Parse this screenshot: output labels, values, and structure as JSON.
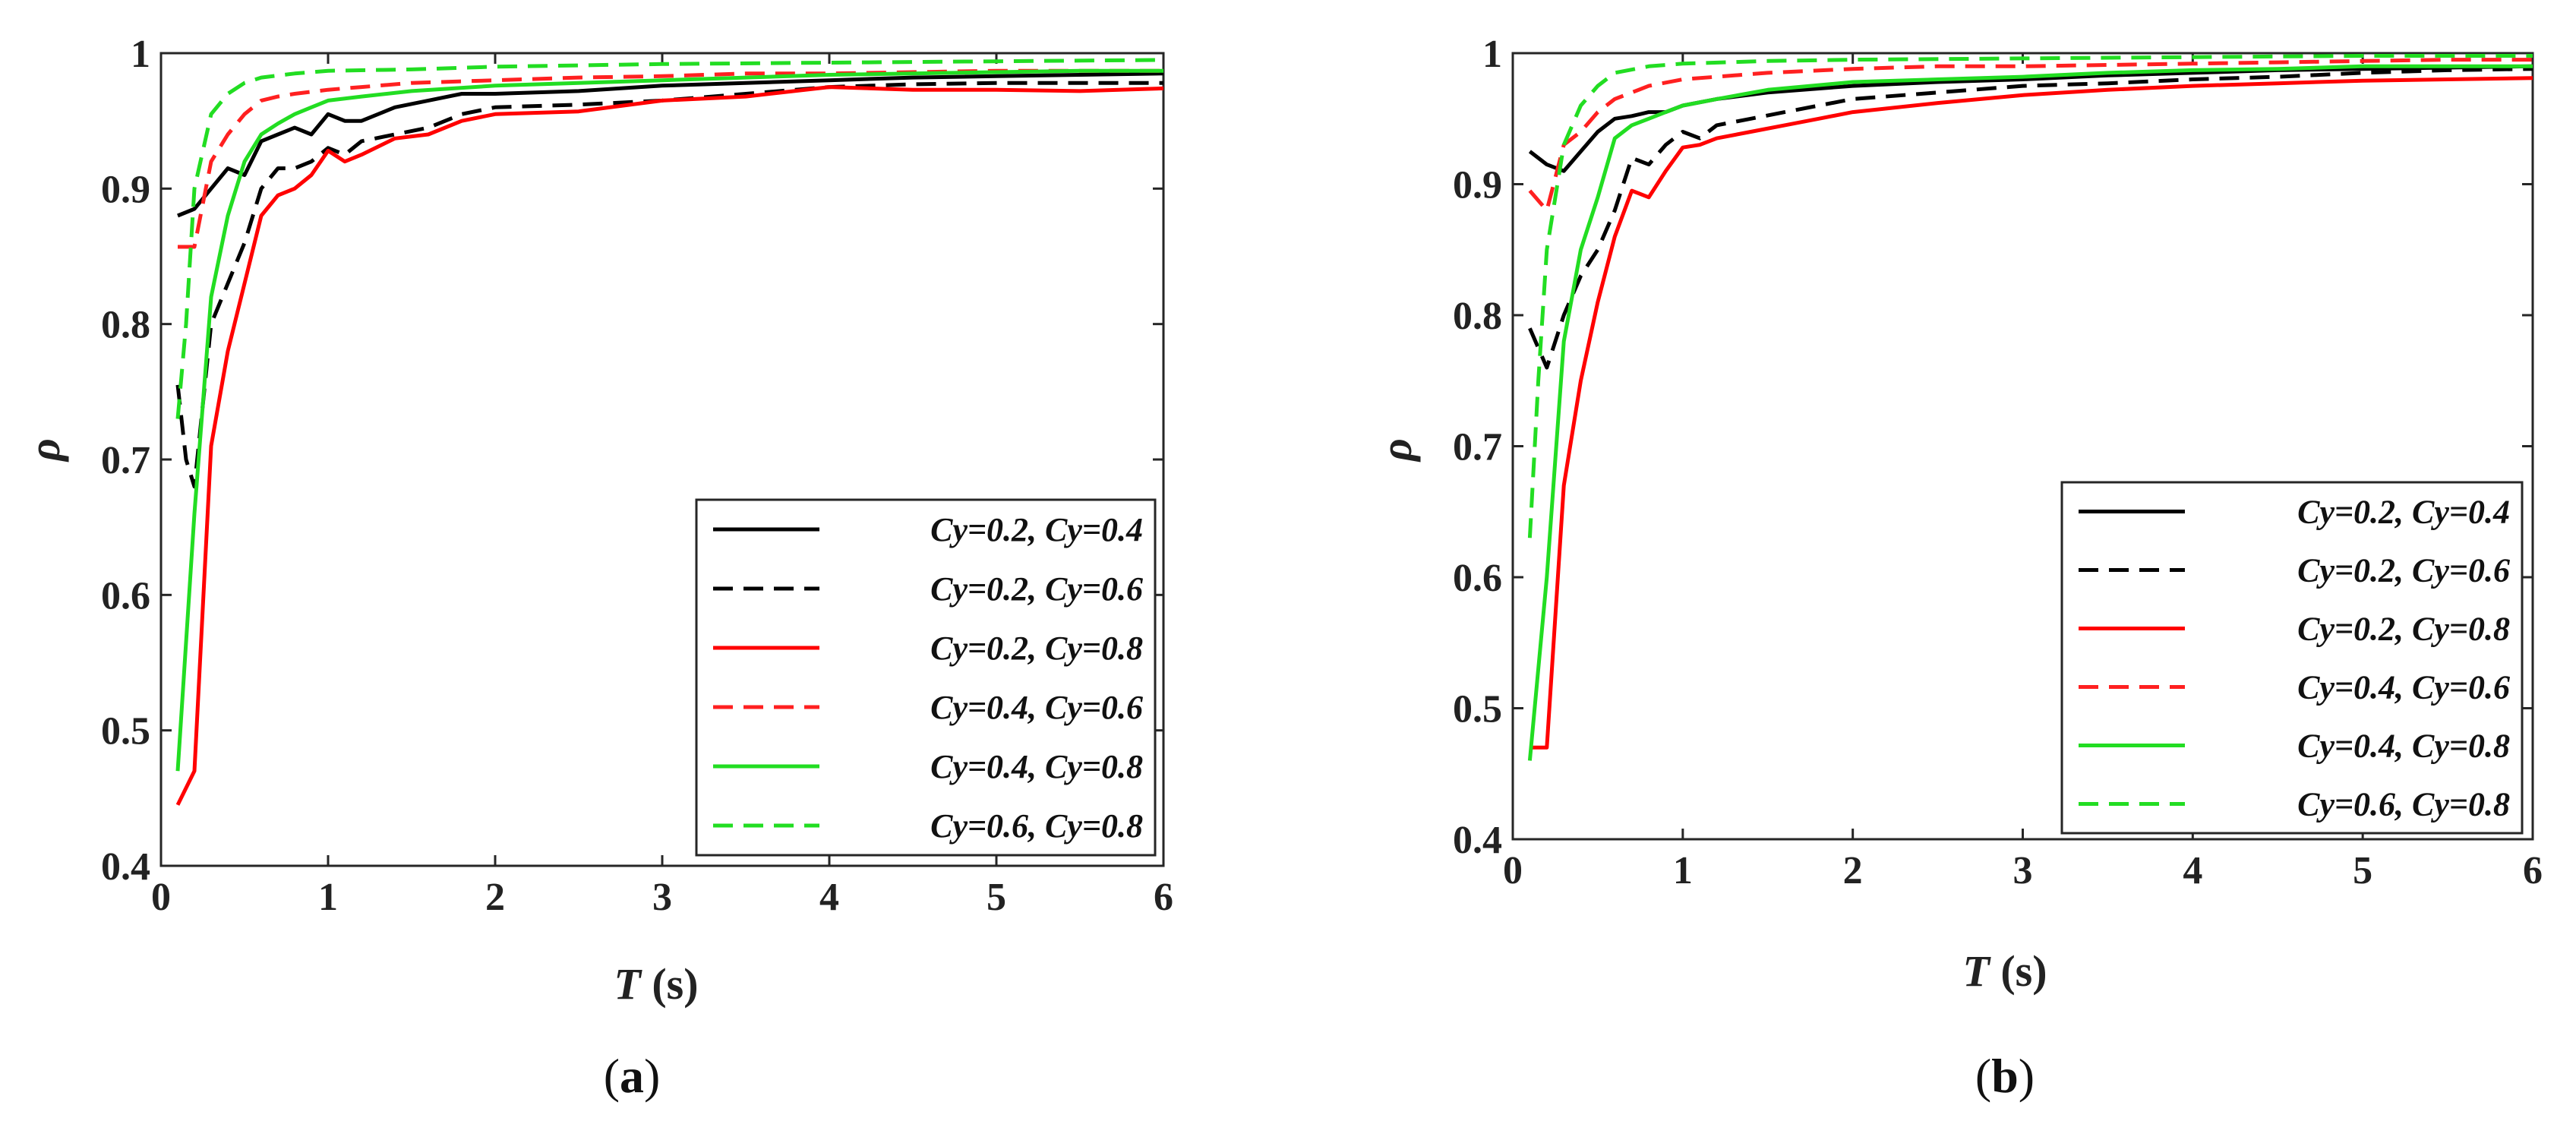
{
  "chart_data": [
    {
      "id": "a",
      "type": "line",
      "caption_label": "a",
      "caption_open": "(",
      "caption_close": ")",
      "xlabel_main": "T",
      "xlabel_unit": " (s)",
      "ylabel": "ρ",
      "xlim": [
        0,
        6
      ],
      "ylim": [
        0.4,
        1
      ],
      "xticks": [
        "0",
        "1",
        "2",
        "3",
        "4",
        "5",
        "6"
      ],
      "yticks": [
        "0.4",
        "0.5",
        "0.6",
        "0.7",
        "0.8",
        "0.9",
        "1"
      ],
      "legend_position": "lower-right",
      "series": [
        {
          "name": "Cy=0.2, Cy=0.4",
          "color": "#000000",
          "dash": "solid",
          "x": [
            0.1,
            0.2,
            0.3,
            0.4,
            0.5,
            0.6,
            0.7,
            0.8,
            0.9,
            1.0,
            1.1,
            1.2,
            1.4,
            1.6,
            1.8,
            2.0,
            2.5,
            3.0,
            3.5,
            4.0,
            4.5,
            5.0,
            5.5,
            6.0
          ],
          "y": [
            0.88,
            0.885,
            0.9,
            0.915,
            0.91,
            0.935,
            0.94,
            0.945,
            0.94,
            0.955,
            0.95,
            0.95,
            0.96,
            0.965,
            0.97,
            0.97,
            0.972,
            0.976,
            0.978,
            0.98,
            0.982,
            0.983,
            0.984,
            0.985
          ]
        },
        {
          "name": "Cy=0.2, Cy=0.6",
          "color": "#000000",
          "dash": "dashed",
          "x": [
            0.1,
            0.15,
            0.2,
            0.3,
            0.4,
            0.5,
            0.6,
            0.7,
            0.8,
            0.9,
            1.0,
            1.1,
            1.2,
            1.4,
            1.6,
            1.8,
            2.0,
            2.5,
            3.0,
            3.5,
            4.0,
            4.5,
            5.0,
            5.5,
            6.0
          ],
          "y": [
            0.755,
            0.7,
            0.68,
            0.8,
            0.83,
            0.86,
            0.9,
            0.915,
            0.915,
            0.92,
            0.93,
            0.925,
            0.935,
            0.94,
            0.945,
            0.955,
            0.96,
            0.962,
            0.965,
            0.97,
            0.975,
            0.977,
            0.978,
            0.978,
            0.978
          ]
        },
        {
          "name": "Cy=0.2, Cy=0.8",
          "color": "#ff0000",
          "dash": "solid",
          "x": [
            0.1,
            0.2,
            0.3,
            0.4,
            0.5,
            0.6,
            0.7,
            0.8,
            0.9,
            1.0,
            1.1,
            1.2,
            1.4,
            1.6,
            1.8,
            2.0,
            2.5,
            3.0,
            3.5,
            4.0,
            4.5,
            5.0,
            5.5,
            6.0
          ],
          "y": [
            0.445,
            0.47,
            0.71,
            0.78,
            0.83,
            0.88,
            0.895,
            0.9,
            0.91,
            0.928,
            0.92,
            0.925,
            0.937,
            0.94,
            0.95,
            0.955,
            0.957,
            0.965,
            0.968,
            0.975,
            0.973,
            0.973,
            0.972,
            0.974
          ]
        },
        {
          "name": "Cy=0.4, Cy=0.6",
          "color": "#ff2020",
          "dash": "dashed",
          "x": [
            0.1,
            0.2,
            0.3,
            0.4,
            0.5,
            0.6,
            0.7,
            0.8,
            1.0,
            1.2,
            1.5,
            2.0,
            2.5,
            3.0,
            3.5,
            4.0,
            4.5,
            5.0,
            5.5,
            6.0
          ],
          "y": [
            0.857,
            0.857,
            0.92,
            0.94,
            0.955,
            0.965,
            0.968,
            0.97,
            0.973,
            0.975,
            0.978,
            0.98,
            0.982,
            0.983,
            0.985,
            0.985,
            0.986,
            0.987,
            0.987,
            0.987
          ]
        },
        {
          "name": "Cy=0.4, Cy=0.8",
          "color": "#22dd22",
          "dash": "solid",
          "x": [
            0.1,
            0.2,
            0.3,
            0.4,
            0.5,
            0.6,
            0.7,
            0.8,
            0.9,
            1.0,
            1.2,
            1.5,
            2.0,
            2.5,
            3.0,
            3.5,
            4.0,
            4.5,
            5.0,
            5.5,
            6.0
          ],
          "y": [
            0.47,
            0.66,
            0.82,
            0.88,
            0.92,
            0.94,
            0.948,
            0.955,
            0.96,
            0.965,
            0.968,
            0.972,
            0.976,
            0.978,
            0.98,
            0.982,
            0.984,
            0.985,
            0.986,
            0.987,
            0.987
          ]
        },
        {
          "name": "Cy=0.6, Cy=0.8",
          "color": "#22dd22",
          "dash": "dashed",
          "x": [
            0.1,
            0.15,
            0.2,
            0.3,
            0.4,
            0.5,
            0.6,
            0.8,
            1.0,
            1.5,
            2.0,
            3.0,
            4.0,
            5.0,
            6.0
          ],
          "y": [
            0.73,
            0.8,
            0.9,
            0.955,
            0.97,
            0.978,
            0.982,
            0.985,
            0.987,
            0.988,
            0.99,
            0.992,
            0.993,
            0.994,
            0.995
          ]
        }
      ]
    },
    {
      "id": "b",
      "type": "line",
      "caption_label": "b",
      "caption_open": "(",
      "caption_close": ")",
      "xlabel_main": "T",
      "xlabel_unit": " (s)",
      "ylabel": "ρ",
      "xlim": [
        0,
        6
      ],
      "ylim": [
        0.4,
        1
      ],
      "xticks": [
        "0",
        "1",
        "2",
        "3",
        "4",
        "5",
        "6"
      ],
      "yticks": [
        "0.4",
        "0.5",
        "0.6",
        "0.7",
        "0.8",
        "0.9",
        "1"
      ],
      "legend_position": "lower-right",
      "series": [
        {
          "name": "Cy=0.2, Cy=0.4",
          "color": "#000000",
          "dash": "solid",
          "x": [
            0.1,
            0.2,
            0.3,
            0.4,
            0.5,
            0.6,
            0.7,
            0.8,
            0.9,
            1.0,
            1.2,
            1.5,
            2.0,
            2.5,
            3.0,
            3.5,
            4.0,
            4.5,
            5.0,
            5.5,
            6.0
          ],
          "y": [
            0.925,
            0.915,
            0.91,
            0.925,
            0.94,
            0.95,
            0.952,
            0.955,
            0.955,
            0.96,
            0.965,
            0.97,
            0.975,
            0.978,
            0.98,
            0.983,
            0.985,
            0.987,
            0.988,
            0.989,
            0.99
          ]
        },
        {
          "name": "Cy=0.2, Cy=0.6",
          "color": "#000000",
          "dash": "dashed",
          "x": [
            0.1,
            0.2,
            0.3,
            0.4,
            0.5,
            0.6,
            0.7,
            0.8,
            0.9,
            1.0,
            1.1,
            1.2,
            1.4,
            1.6,
            1.8,
            2.0,
            2.5,
            3.0,
            3.5,
            4.0,
            4.5,
            5.0,
            5.5,
            6.0
          ],
          "y": [
            0.79,
            0.76,
            0.8,
            0.83,
            0.85,
            0.88,
            0.92,
            0.915,
            0.93,
            0.94,
            0.935,
            0.945,
            0.95,
            0.955,
            0.96,
            0.965,
            0.97,
            0.975,
            0.977,
            0.98,
            0.982,
            0.985,
            0.987,
            0.988
          ]
        },
        {
          "name": "Cy=0.2, Cy=0.8",
          "color": "#ff0000",
          "dash": "solid",
          "x": [
            0.1,
            0.2,
            0.3,
            0.4,
            0.5,
            0.6,
            0.7,
            0.8,
            0.9,
            1.0,
            1.1,
            1.2,
            1.4,
            1.6,
            1.8,
            2.0,
            2.5,
            3.0,
            3.5,
            4.0,
            4.5,
            5.0,
            5.5,
            6.0
          ],
          "y": [
            0.47,
            0.47,
            0.67,
            0.75,
            0.81,
            0.86,
            0.895,
            0.89,
            0.91,
            0.928,
            0.93,
            0.935,
            0.94,
            0.945,
            0.95,
            0.955,
            0.962,
            0.968,
            0.972,
            0.975,
            0.977,
            0.979,
            0.98,
            0.981
          ]
        },
        {
          "name": "Cy=0.4, Cy=0.6",
          "color": "#ff2020",
          "dash": "dashed",
          "x": [
            0.1,
            0.2,
            0.3,
            0.4,
            0.5,
            0.6,
            0.7,
            0.8,
            1.0,
            1.5,
            2.0,
            2.5,
            3.0,
            3.5,
            4.0,
            4.5,
            5.0,
            5.5,
            6.0
          ],
          "y": [
            0.895,
            0.88,
            0.93,
            0.94,
            0.955,
            0.965,
            0.97,
            0.975,
            0.98,
            0.985,
            0.988,
            0.99,
            0.99,
            0.991,
            0.992,
            0.993,
            0.994,
            0.995,
            0.995
          ]
        },
        {
          "name": "Cy=0.4, Cy=0.8",
          "color": "#22dd22",
          "dash": "solid",
          "x": [
            0.1,
            0.2,
            0.3,
            0.4,
            0.5,
            0.6,
            0.7,
            0.8,
            0.9,
            1.0,
            1.2,
            1.5,
            2.0,
            2.5,
            3.0,
            3.5,
            4.0,
            4.5,
            5.0,
            5.5,
            6.0
          ],
          "y": [
            0.46,
            0.6,
            0.78,
            0.85,
            0.89,
            0.935,
            0.945,
            0.95,
            0.955,
            0.96,
            0.965,
            0.972,
            0.978,
            0.98,
            0.982,
            0.985,
            0.987,
            0.988,
            0.99,
            0.99,
            0.99
          ]
        },
        {
          "name": "Cy=0.6, Cy=0.8",
          "color": "#22dd22",
          "dash": "dashed",
          "x": [
            0.1,
            0.15,
            0.2,
            0.3,
            0.4,
            0.5,
            0.6,
            0.8,
            1.0,
            1.5,
            2.0,
            3.0,
            4.0,
            5.0,
            6.0
          ],
          "y": [
            0.63,
            0.75,
            0.85,
            0.93,
            0.96,
            0.975,
            0.985,
            0.99,
            0.992,
            0.994,
            0.995,
            0.996,
            0.997,
            0.998,
            0.998
          ]
        }
      ]
    }
  ]
}
